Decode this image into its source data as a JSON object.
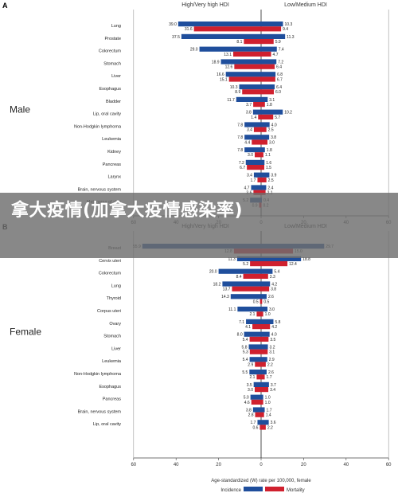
{
  "overlay": {
    "title": "拿大疫情(加拿大疫情感染率)"
  },
  "legend": {
    "incidence": "Incidence",
    "mortality": "Mortality",
    "colors": {
      "incidence": "#1f4e9c",
      "mortality": "#d0202e"
    }
  },
  "chart_data": [
    {
      "type": "bar",
      "panel": "A",
      "group": "Male",
      "left_header": "High/Very high HDI",
      "right_header": "Low/Medium HDI",
      "xlim": [
        -60,
        60
      ],
      "xticks": [
        60,
        40,
        20,
        0,
        20,
        40,
        60
      ],
      "categories": [
        "Lung",
        "Prostate",
        "Colorectum",
        "Stomach",
        "Liver",
        "Esophagus",
        "Bladder",
        "Lip, oral cavity",
        "Non-Hodgkin lymphoma",
        "Leukemia",
        "Kidney",
        "Pancreas",
        "Larynx",
        "Brain, nervous system",
        "Melanoma of skin"
      ],
      "series": [
        {
          "name": "Incidence",
          "side": "High/Very high HDI",
          "values": [
            39.0,
            37.5,
            29.0,
            18.9,
            16.6,
            10.3,
            11.7,
            3.8,
            7.8,
            7.8,
            7.8,
            7.2,
            3.4,
            4.7,
            5.2
          ]
        },
        {
          "name": "Mortality",
          "side": "High/Very high HDI",
          "values": [
            31.6,
            8.1,
            13.1,
            12.6,
            15.1,
            8.9,
            3.7,
            1.4,
            3.4,
            4.4,
            3.0,
            6.7,
            1.7,
            3.6,
            0.9
          ]
        },
        {
          "name": "Incidence",
          "side": "Low/Medium HDI",
          "values": [
            10.3,
            11.3,
            7.4,
            7.2,
            6.8,
            6.4,
            3.1,
            10.2,
            4.0,
            3.8,
            1.8,
            1.6,
            3.9,
            2.4,
            0.4
          ]
        },
        {
          "name": "Mortality",
          "side": "Low/Medium HDI",
          "values": [
            9.4,
            5.9,
            4.7,
            6.4,
            6.7,
            6.0,
            1.8,
            5.7,
            2.5,
            3.0,
            1.1,
            1.5,
            2.5,
            2.1,
            0.2
          ]
        }
      ]
    },
    {
      "type": "bar",
      "panel": "B",
      "group": "Female",
      "left_header": "High/Very high HDI",
      "right_header": "Low/Medium HDI",
      "xlim": [
        -60,
        60
      ],
      "xticks": [
        60,
        40,
        20,
        0,
        20,
        40,
        60
      ],
      "xlabel": "Age-standardized (W) rate per 100,000, female",
      "categories": [
        "Breast",
        "Cervix uteri",
        "Colorectum",
        "Lung",
        "Thyroid",
        "Corpus uteri",
        "Ovary",
        "Stomach",
        "Liver",
        "Leukemia",
        "Non-Hodgkin lymphoma",
        "Esophagus",
        "Pancreas",
        "Brain, nervous system",
        "Lip, oral cavity"
      ],
      "series": [
        {
          "name": "Incidence",
          "side": "High/Very high HDI",
          "values": [
            55.9,
            11.3,
            20.0,
            18.2,
            14.3,
            11.1,
            7.1,
            8.0,
            5.8,
            5.4,
            5.5,
            3.5,
            5.0,
            3.8,
            1.7
          ]
        },
        {
          "name": "Mortality",
          "side": "High/Very high HDI",
          "values": [
            12.8,
            5.2,
            8.4,
            13.7,
            0.5,
            2.1,
            4.1,
            5.4,
            5.3,
            2.9,
            2.1,
            3.0,
            4.6,
            2.8,
            0.6
          ]
        },
        {
          "name": "Incidence",
          "side": "Low/Medium HDI",
          "values": [
            29.7,
            18.8,
            5.4,
            4.2,
            2.6,
            3.0,
            5.8,
            4.0,
            3.2,
            2.9,
            2.6,
            3.7,
            1.0,
            1.7,
            3.6
          ]
        },
        {
          "name": "Mortality",
          "side": "Low/Medium HDI",
          "values": [
            15.0,
            12.4,
            3.3,
            3.8,
            0.5,
            1.0,
            4.2,
            3.5,
            3.1,
            2.2,
            1.7,
            3.4,
            1.0,
            1.4,
            2.2
          ]
        }
      ]
    }
  ]
}
